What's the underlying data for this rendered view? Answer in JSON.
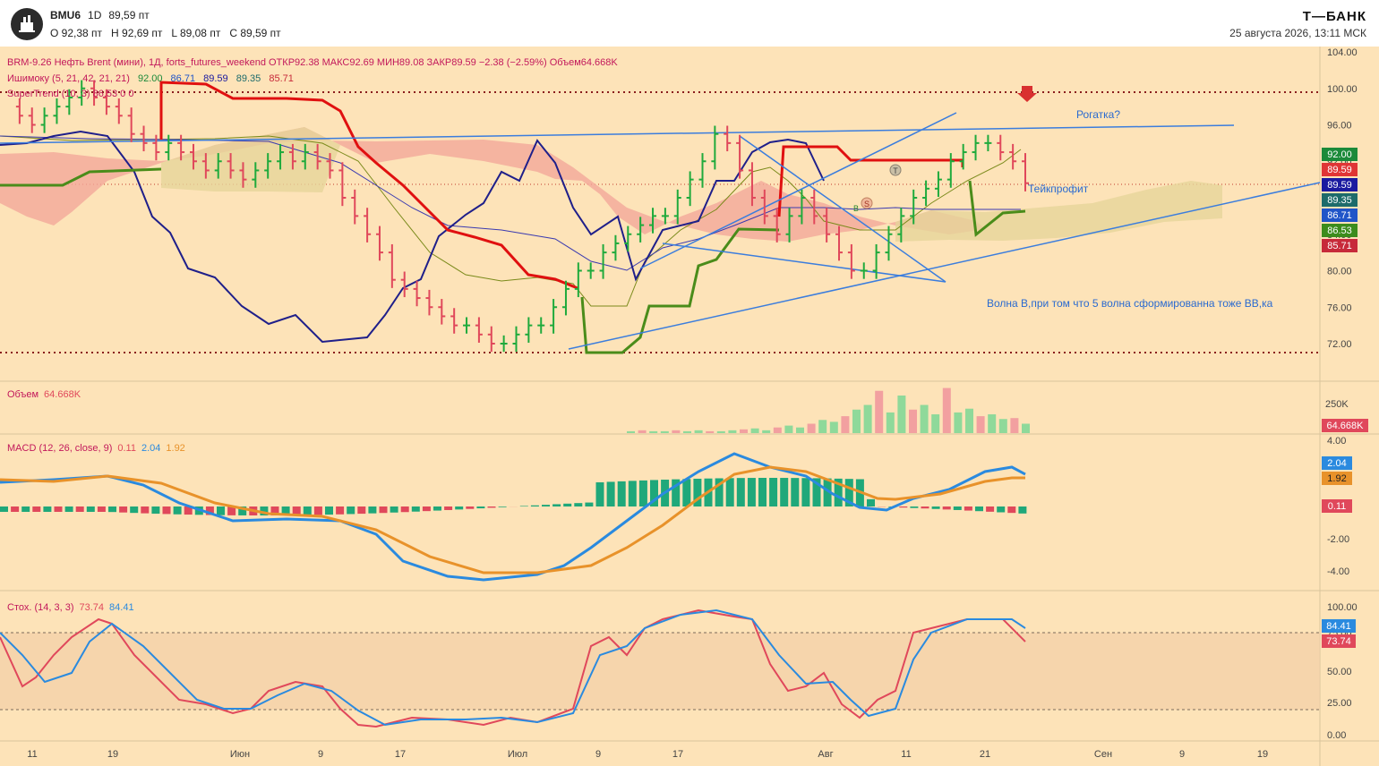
{
  "header": {
    "symbol": "BMU6",
    "interval": "1D",
    "last": "89,59 пт",
    "open": "O 92,38 пт",
    "high": "H 92,69 пт",
    "low": "L 89,08 пт",
    "close": "C 89,59 пт",
    "brand": "Т—БАНК",
    "datetime": "25 августа 2026, 13:11 МСК"
  },
  "legend": {
    "main": "BRM-9.26 Нефть Brent (мини), 1Д, forts_futures_weekend  ОТКР92.38  МАКС92.69  МИН89.08  ЗАКР89.59  −2.38 (−2.59%)  Объем64.668K",
    "ichimoku_label": "Ишимоку (5, 21, 42, 21, 21)",
    "ichimoku_values": [
      "92.00",
      "86.71",
      "89.59",
      "89.35",
      "85.71"
    ],
    "supertrend": "SuperTrend (10, 3)  86.53  0  0",
    "volume_label": "Объем",
    "volume_value": "64.668K",
    "macd_label": "MACD (12, 26, close, 9)",
    "macd_values": [
      "0.11",
      "2.04",
      "1.92"
    ],
    "stoch_label": "Стох. (14, 3, 3)",
    "stoch_values": [
      "73.74",
      "84.41"
    ]
  },
  "annotations": {
    "rogatka": "Рогатка?",
    "takeprofit": "Тейкпрофит",
    "wave": "Волна В,при том что 5 волна сформированна тоже ВВ,ка",
    "marker_t": "T",
    "marker_s": "S",
    "marker_b": "B"
  },
  "chart_data": {
    "type": "candlestick",
    "price_axis": {
      "ticks": [
        72,
        76,
        80,
        84,
        88,
        92,
        96,
        100,
        104
      ],
      "labels": [
        "72.00",
        "76.00",
        "80.00",
        "84.00",
        "88.00",
        "92.00",
        "96.00",
        "100.00",
        "104.00"
      ]
    },
    "price_badges": [
      {
        "value": "92.00",
        "color": "#1b8a3a"
      },
      {
        "value": "89.59",
        "color": "#e03535"
      },
      {
        "value": "89.59",
        "color": "#1a1aa0"
      },
      {
        "value": "89.35",
        "color": "#1d6b6b"
      },
      {
        "value": "86.71",
        "color": "#2055c8"
      },
      {
        "value": "86.53",
        "color": "#3c8c1c"
      },
      {
        "value": "85.71",
        "color": "#c72a3a"
      }
    ],
    "x_axis": {
      "labels": [
        "11",
        "19",
        "Июн",
        "9",
        "17",
        "Июл",
        "9",
        "17",
        "Авг",
        "11",
        "21",
        "Сен",
        "9",
        "19"
      ]
    },
    "price_series": [
      98,
      97,
      96,
      97,
      98,
      99,
      100,
      99,
      98,
      97,
      95,
      94,
      93,
      94,
      93,
      92,
      91,
      92,
      91,
      90,
      91,
      92,
      93,
      92,
      93,
      92,
      91,
      88,
      86,
      84,
      82,
      79,
      78,
      77,
      76,
      75,
      74,
      74,
      73,
      72,
      72,
      73,
      74,
      74,
      76,
      78,
      80,
      80,
      82,
      83,
      84,
      85,
      86,
      86,
      88,
      90,
      92,
      95,
      94,
      91,
      88,
      86,
      84,
      86,
      88,
      86,
      84,
      82,
      80,
      80,
      82,
      84,
      86,
      88,
      89,
      90,
      92,
      93,
      94,
      94,
      93,
      92,
      89.6
    ],
    "volume": {
      "ticks": [
        "250K"
      ],
      "last": "64.668K"
    },
    "macd": {
      "ticks": [
        "4.00",
        "-2.00",
        "-4.00"
      ],
      "macd": 2.04,
      "signal": 1.92,
      "hist": 0.11
    },
    "stoch": {
      "ticks": [
        "100.00",
        "75.00",
        "50.00",
        "25.00",
        "0.00"
      ],
      "k": 73.74,
      "d": 84.41
    },
    "colors": {
      "up": "#1faa3c",
      "down": "#e0485b",
      "tenkan": "#8a8a2a",
      "kijun": "#3030b0",
      "chikou": "#1f1f8a",
      "supertrend": "#4a8c1a",
      "trend_red": "#e01010",
      "trendline": "#3b7ddd"
    }
  }
}
